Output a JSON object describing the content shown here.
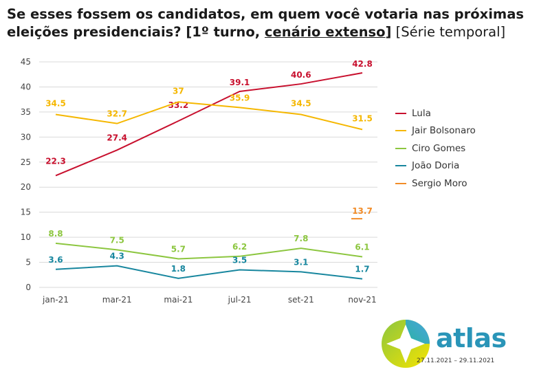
{
  "title": {
    "part1": "Se esses fossem os candidatos, em quem você votaria nas próximas eleições presidenciais? [1º turno, ",
    "part2": "cenário extenso",
    "part3": "]",
    "part4": " [Série temporal]"
  },
  "chart_data": {
    "type": "line",
    "categories": [
      "jan-21",
      "mar-21",
      "mai-21",
      "jul-21",
      "set-21",
      "nov-21"
    ],
    "ylim": [
      0,
      45
    ],
    "yticks": [
      0,
      5,
      10,
      15,
      20,
      25,
      30,
      35,
      40,
      45
    ],
    "grid": true,
    "legend_position": "right",
    "series": [
      {
        "name": "Lula",
        "color": "#c8102e",
        "values": [
          22.3,
          27.4,
          33.2,
          39.1,
          40.6,
          42.8
        ],
        "labels": [
          "22.3",
          "27.4",
          "33.2",
          "39.1",
          "40.6",
          "42.8"
        ]
      },
      {
        "name": "Jair Bolsonaro",
        "color": "#f5b700",
        "values": [
          34.5,
          32.7,
          37,
          35.9,
          34.5,
          31.5
        ],
        "labels": [
          "34.5",
          "32.7",
          "37",
          "35.9",
          "34.5",
          "31.5"
        ]
      },
      {
        "name": "Ciro Gomes",
        "color": "#8cc63f",
        "values": [
          8.8,
          7.5,
          5.7,
          6.2,
          7.8,
          6.1
        ],
        "labels": [
          "8.8",
          "7.5",
          "5.7",
          "6.2",
          "7.8",
          "6.1"
        ]
      },
      {
        "name": "João Doria",
        "color": "#17869e",
        "values": [
          3.6,
          4.3,
          1.8,
          3.5,
          3.1,
          1.7
        ],
        "labels": [
          "3.6",
          "4.3",
          "1.8",
          "3.5",
          "3.1",
          "1.7"
        ]
      },
      {
        "name": "Sergio Moro",
        "color": "#f28c28",
        "values": [
          null,
          null,
          null,
          null,
          null,
          13.7
        ],
        "labels": [
          null,
          null,
          null,
          null,
          null,
          "13.7"
        ]
      }
    ]
  },
  "branding": {
    "logo_text": "atlas",
    "date_range": "27.11.2021 – 29.11.2021",
    "logo_icon": "atlas-compass-icon"
  }
}
